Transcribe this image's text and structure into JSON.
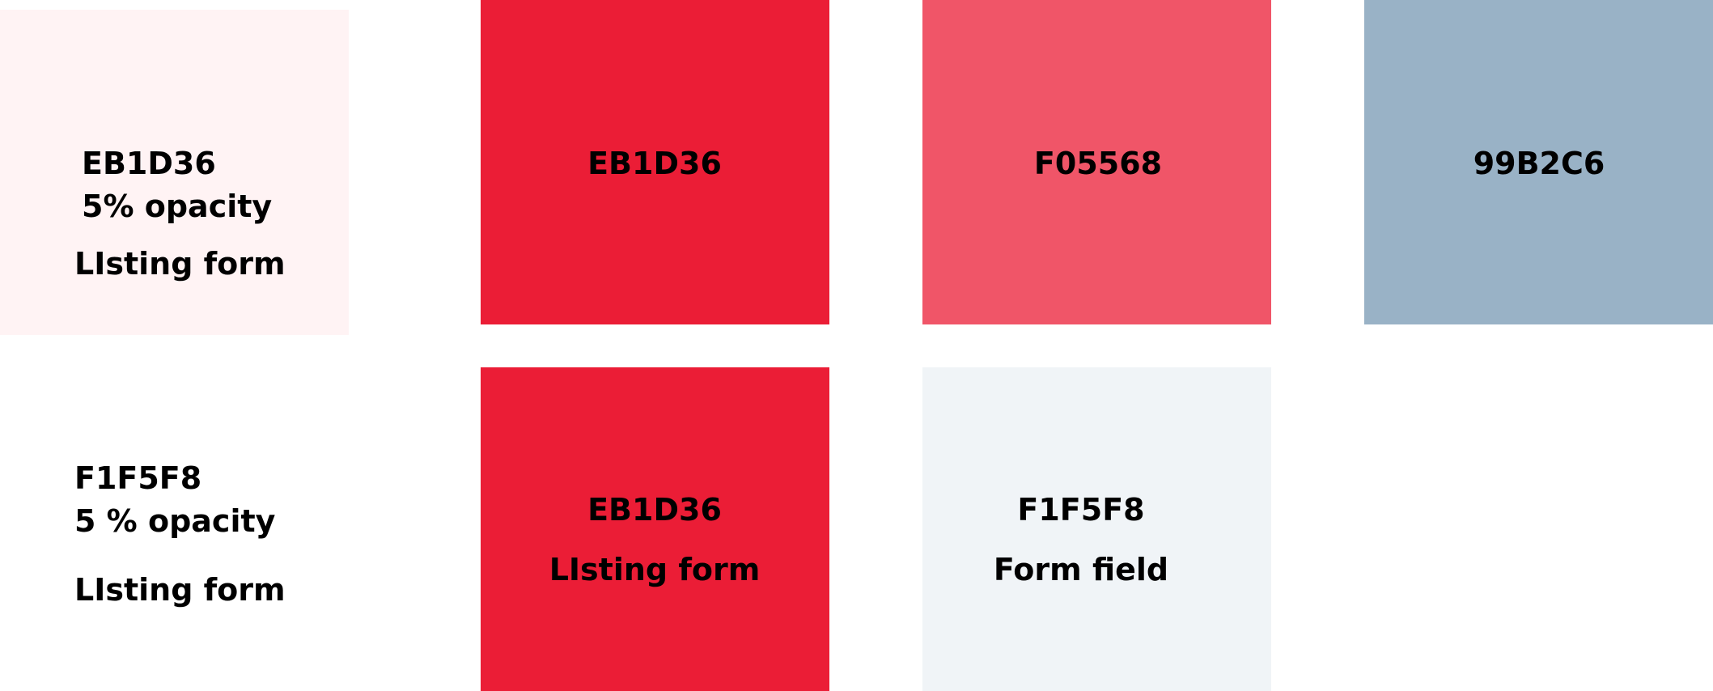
{
  "swatches": [
    {
      "id": "light-red",
      "color": "#FFF3F4",
      "code": "EB1D36",
      "opacity_note": "5% opacity",
      "usage": "LIsting form"
    },
    {
      "id": "red",
      "color": "#EB1D36",
      "code": "EB1D36"
    },
    {
      "id": "pink",
      "color": "#F05568",
      "code": "F05568"
    },
    {
      "id": "blue-grey",
      "color": "#99B2C6",
      "code": "99B2C6"
    },
    {
      "id": "unfilled",
      "code": "F1F5F8",
      "opacity_note": "5 % opacity",
      "usage": "LIsting form"
    },
    {
      "id": "red-2",
      "color": "#EB1D36",
      "code": "EB1D36",
      "usage": "LIsting form"
    },
    {
      "id": "light-grey",
      "color": "#F0F4F7",
      "code": "F1F5F8",
      "usage": "Form field"
    }
  ]
}
